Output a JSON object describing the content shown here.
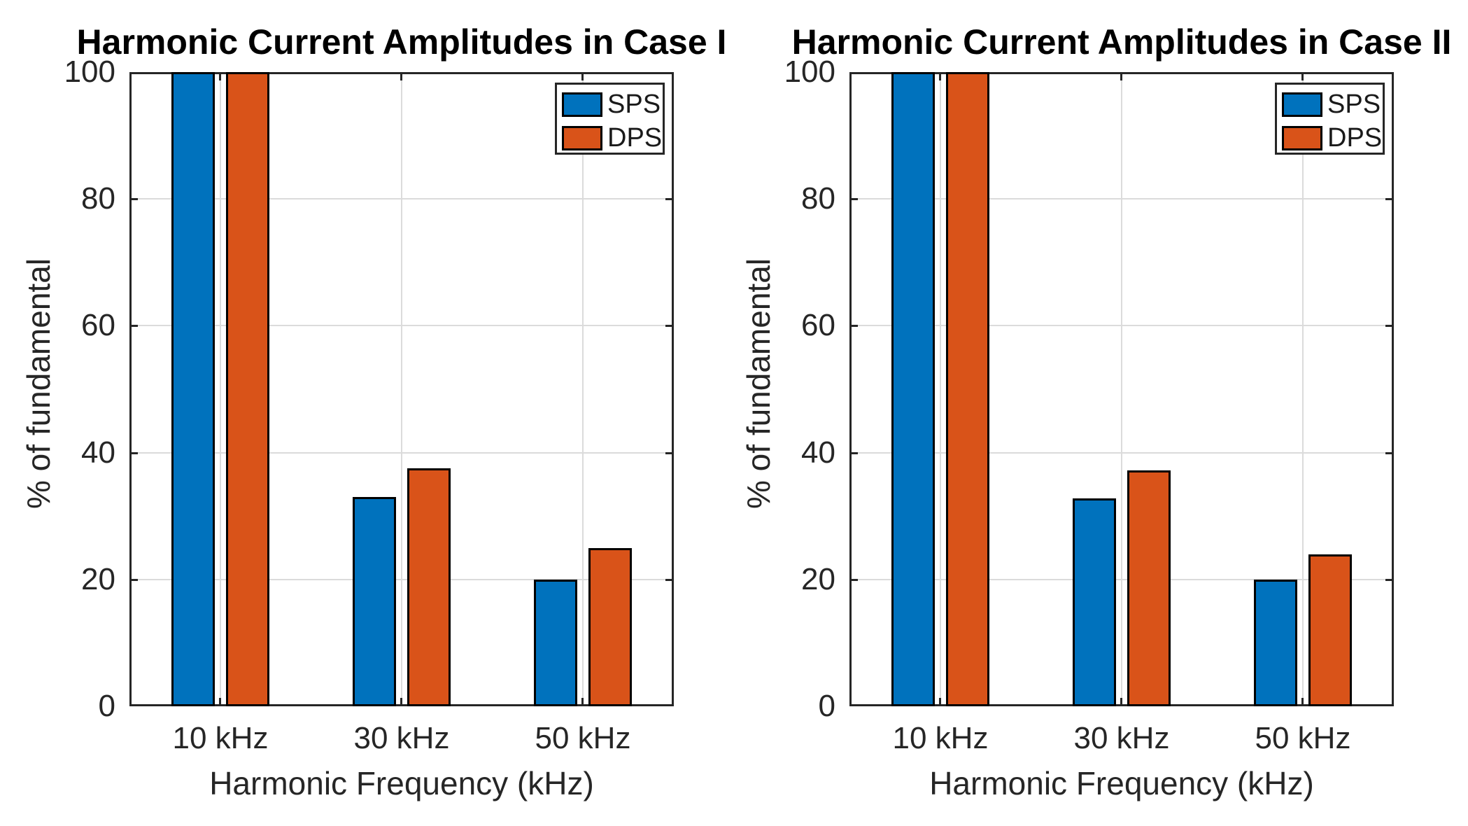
{
  "chart_data": [
    {
      "type": "bar",
      "title": "Harmonic Current Amplitudes in Case I",
      "xlabel": "Harmonic Frequency (kHz)",
      "ylabel": "% of fundamental",
      "categories": [
        "10 kHz",
        "30 kHz",
        "50 kHz"
      ],
      "series": [
        {
          "name": "SPS",
          "color": "#0072BD",
          "values": [
            100,
            33,
            20
          ]
        },
        {
          "name": "DPS",
          "color": "#D95319",
          "values": [
            100,
            37.5,
            25
          ]
        }
      ],
      "ylim": [
        0,
        100
      ],
      "yticks": [
        0,
        20,
        40,
        60,
        80,
        100
      ],
      "grid": true,
      "legend_position": "top-right"
    },
    {
      "type": "bar",
      "title": "Harmonic Current Amplitudes in Case II",
      "xlabel": "Harmonic Frequency (kHz)",
      "ylabel": "% of fundamental",
      "categories": [
        "10 kHz",
        "30 kHz",
        "50 kHz"
      ],
      "series": [
        {
          "name": "SPS",
          "color": "#0072BD",
          "values": [
            100,
            32.8,
            20
          ]
        },
        {
          "name": "DPS",
          "color": "#D95319",
          "values": [
            100,
            37.2,
            23.9
          ]
        }
      ],
      "ylim": [
        0,
        100
      ],
      "yticks": [
        0,
        20,
        40,
        60,
        80,
        100
      ],
      "grid": true,
      "legend_position": "top-right"
    }
  ],
  "style": {
    "background": "#FFFFFF",
    "axis_color": "#262626",
    "grid_color": "#DBDBDB",
    "bar_edge_color": "#000000",
    "tick_text_color": "#262626",
    "title_color": "#000000"
  }
}
